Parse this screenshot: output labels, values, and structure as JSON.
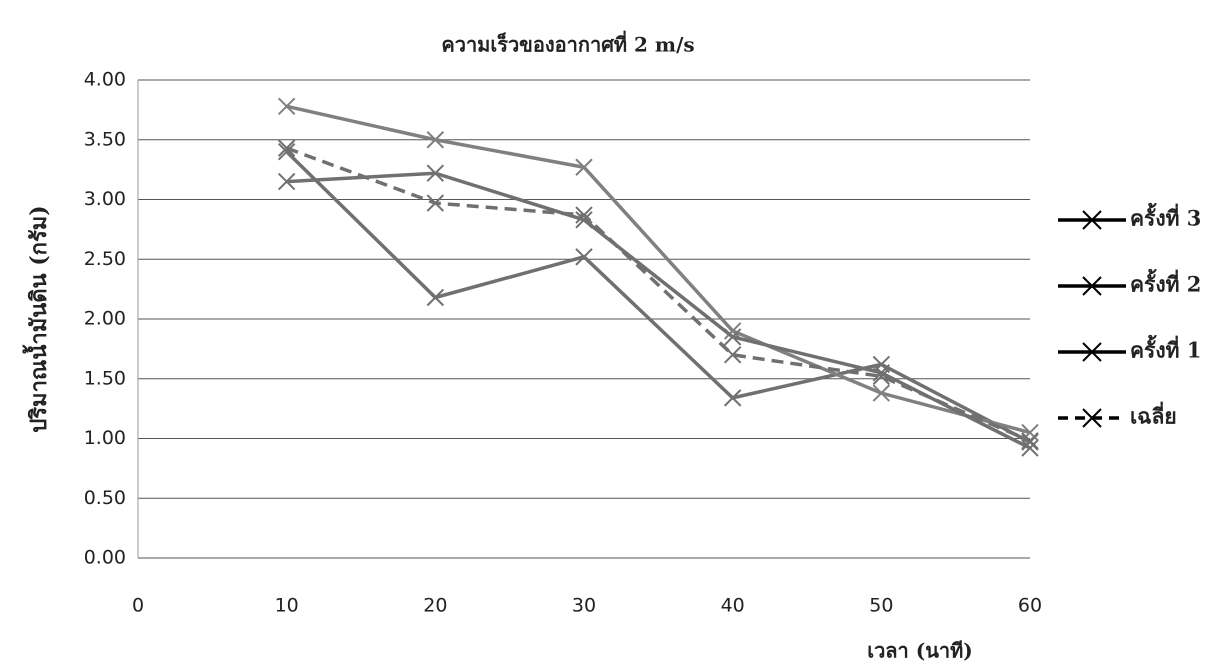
{
  "chart_data": {
    "type": "line",
    "title": "ความเร็วของอากาศที่ 2 m/s",
    "x_label": "เวลา (นาที)",
    "y_label": "ปริมาณน้ำมันดิน (กรัม)",
    "x": [
      10,
      20,
      30,
      40,
      50,
      60
    ],
    "series": [
      {
        "name": "ครั้งที่ 3",
        "color": "#707070",
        "dash": false,
        "values": [
          3.4,
          2.18,
          2.52,
          1.34,
          1.62,
          0.97
        ]
      },
      {
        "name": "ครั้งที่ 2",
        "color": "#808080",
        "dash": false,
        "values": [
          3.78,
          3.5,
          3.27,
          1.9,
          1.38,
          1.05
        ]
      },
      {
        "name": "ครั้งที่ 1",
        "color": "#707070",
        "dash": false,
        "values": [
          3.15,
          3.22,
          2.83,
          1.85,
          1.55,
          0.92
        ]
      },
      {
        "name": "เฉลี่ย",
        "color": "#707070",
        "dash": true,
        "values": [
          3.43,
          2.97,
          2.87,
          1.7,
          1.52,
          0.98
        ]
      }
    ],
    "xlim": [
      0,
      60
    ],
    "xticks": [
      0,
      10,
      20,
      30,
      40,
      50,
      60
    ],
    "ylim": [
      0,
      4
    ],
    "yticks": [
      {
        "value": 0,
        "label": "0.00"
      },
      {
        "value": 0.5,
        "label": "0.50"
      },
      {
        "value": 1,
        "label": "1.00"
      },
      {
        "value": 1.5,
        "label": "1.50"
      },
      {
        "value": 2,
        "label": "2.00"
      },
      {
        "value": 2.5,
        "label": "2.50"
      },
      {
        "value": 3,
        "label": "3.00"
      },
      {
        "value": 3.5,
        "label": "3.50"
      },
      {
        "value": 4,
        "label": "4.00"
      }
    ],
    "grid": true,
    "legend": "right"
  }
}
